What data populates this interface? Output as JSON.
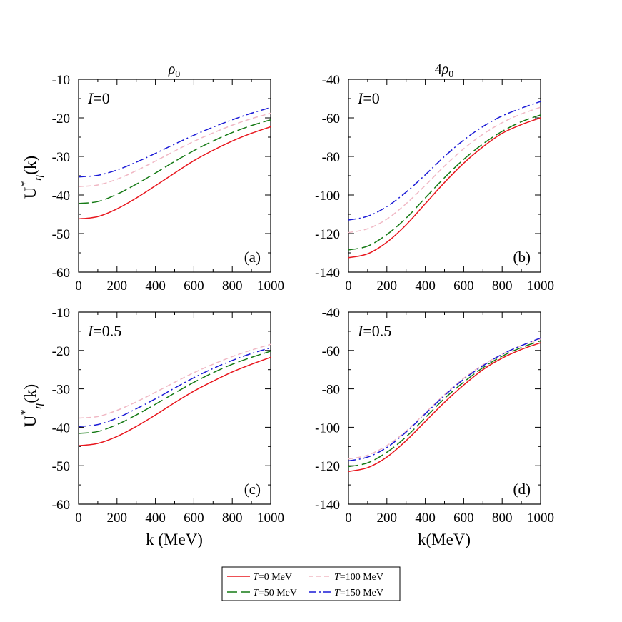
{
  "figure": {
    "column_titles": [
      "ρ0",
      "4ρ0"
    ],
    "ylabel": "U*η(k)",
    "xlabels": [
      "k (MeV)",
      "k(MeV)"
    ]
  },
  "legend": {
    "entries": [
      {
        "label": "T=0 MeV",
        "color": "#e8161d",
        "dash": "solid"
      },
      {
        "label": "T=100 MeV",
        "color": "#f0b8c4",
        "dash": "short-dash"
      },
      {
        "label": "T=50 MeV",
        "color": "#157a15",
        "dash": "long-dash"
      },
      {
        "label": "T=150 MeV",
        "color": "#1a1ad6",
        "dash": "dash-dot"
      }
    ]
  },
  "chart_data": [
    {
      "type": "line",
      "panel_label": "(a)",
      "isospin_label": "I=0",
      "column_title": "ρ0",
      "xlim": [
        0,
        1000
      ],
      "ylim": [
        -60,
        -10
      ],
      "xticks": [
        0,
        200,
        400,
        600,
        800,
        1000
      ],
      "yticks": [
        -60,
        -50,
        -40,
        -30,
        -20,
        -10
      ],
      "x": [
        0,
        100,
        200,
        300,
        400,
        500,
        600,
        700,
        800,
        900,
        1000
      ],
      "series": [
        {
          "name": "T=0 MeV",
          "values": [
            -46.2,
            -45.6,
            -43.6,
            -40.8,
            -37.6,
            -34.3,
            -31.1,
            -28.4,
            -26.0,
            -24.0,
            -22.3
          ]
        },
        {
          "name": "T=50 MeV",
          "values": [
            -42.2,
            -41.7,
            -39.8,
            -37.2,
            -34.3,
            -31.3,
            -28.5,
            -26.0,
            -23.8,
            -22.0,
            -20.5
          ]
        },
        {
          "name": "T=100 MeV",
          "values": [
            -37.8,
            -37.4,
            -35.9,
            -33.7,
            -31.2,
            -28.6,
            -26.1,
            -23.9,
            -21.9,
            -20.2,
            -18.8
          ]
        },
        {
          "name": "T=150 MeV",
          "values": [
            -35.3,
            -34.9,
            -33.5,
            -31.5,
            -29.2,
            -26.8,
            -24.5,
            -22.4,
            -20.5,
            -18.8,
            -17.3
          ]
        }
      ]
    },
    {
      "type": "line",
      "panel_label": "(b)",
      "isospin_label": "I=0",
      "column_title": "4ρ0",
      "xlim": [
        0,
        1000
      ],
      "ylim": [
        -140,
        -40
      ],
      "xticks": [
        0,
        200,
        400,
        600,
        800,
        1000
      ],
      "yticks": [
        -140,
        -120,
        -100,
        -80,
        -60,
        -40
      ],
      "x": [
        0,
        100,
        200,
        300,
        400,
        500,
        600,
        700,
        800,
        900,
        1000
      ],
      "series": [
        {
          "name": "T=0 MeV",
          "values": [
            -132.5,
            -130.5,
            -124.5,
            -115.5,
            -104.5,
            -93.5,
            -83.5,
            -75.0,
            -68.0,
            -63.5,
            -60.0
          ]
        },
        {
          "name": "T=50 MeV",
          "values": [
            -128.5,
            -126.5,
            -120.5,
            -112.0,
            -101.5,
            -91.0,
            -81.5,
            -73.5,
            -67.0,
            -62.0,
            -58.5
          ]
        },
        {
          "name": "T=100 MeV",
          "values": [
            -119.5,
            -117.5,
            -112.5,
            -104.5,
            -95.0,
            -85.0,
            -76.0,
            -68.5,
            -62.5,
            -58.0,
            -54.5
          ]
        },
        {
          "name": "T=150 MeV",
          "values": [
            -113.0,
            -111.0,
            -106.0,
            -98.5,
            -89.5,
            -80.0,
            -71.5,
            -64.5,
            -59.0,
            -55.0,
            -51.5
          ]
        }
      ]
    },
    {
      "type": "line",
      "panel_label": "(c)",
      "isospin_label": "I=0.5",
      "column_title": "",
      "xlim": [
        0,
        1000
      ],
      "ylim": [
        -60,
        -10
      ],
      "xticks": [
        0,
        200,
        400,
        600,
        800,
        1000
      ],
      "yticks": [
        -60,
        -50,
        -40,
        -30,
        -20,
        -10
      ],
      "x": [
        0,
        100,
        200,
        300,
        400,
        500,
        600,
        700,
        800,
        900,
        1000
      ],
      "series": [
        {
          "name": "T=0 MeV",
          "values": [
            -44.8,
            -44.2,
            -42.4,
            -39.8,
            -36.8,
            -33.6,
            -30.6,
            -28.0,
            -25.6,
            -23.6,
            -21.8
          ]
        },
        {
          "name": "T=50 MeV",
          "values": [
            -41.6,
            -41.1,
            -39.3,
            -36.8,
            -34.0,
            -31.1,
            -28.3,
            -25.8,
            -23.6,
            -21.8,
            -20.2
          ]
        },
        {
          "name": "T=100 MeV",
          "values": [
            -37.6,
            -37.2,
            -35.6,
            -33.4,
            -30.9,
            -28.3,
            -25.8,
            -23.6,
            -21.6,
            -19.9,
            -18.4
          ]
        },
        {
          "name": "T=150 MeV",
          "values": [
            -39.8,
            -39.3,
            -37.6,
            -35.2,
            -32.6,
            -29.8,
            -27.1,
            -24.7,
            -22.6,
            -20.8,
            -19.3
          ]
        }
      ]
    },
    {
      "type": "line",
      "panel_label": "(d)",
      "isospin_label": "I=0.5",
      "column_title": "",
      "xlim": [
        0,
        1000
      ],
      "ylim": [
        -140,
        -40
      ],
      "xticks": [
        0,
        200,
        400,
        600,
        800,
        1000
      ],
      "yticks": [
        -140,
        -120,
        -100,
        -80,
        -60,
        -40
      ],
      "x": [
        0,
        100,
        200,
        300,
        400,
        500,
        600,
        700,
        800,
        900,
        1000
      ],
      "series": [
        {
          "name": "T=0 MeV",
          "values": [
            -123.0,
            -121.0,
            -115.5,
            -107.0,
            -97.0,
            -87.0,
            -78.0,
            -70.0,
            -64.0,
            -59.5,
            -56.0
          ]
        },
        {
          "name": "T=50 MeV",
          "values": [
            -120.5,
            -118.5,
            -113.0,
            -105.0,
            -95.0,
            -85.0,
            -76.5,
            -69.0,
            -63.0,
            -58.5,
            -55.0
          ]
        },
        {
          "name": "T=100 MeV",
          "values": [
            -116.5,
            -114.5,
            -109.5,
            -102.0,
            -92.5,
            -83.0,
            -74.5,
            -67.5,
            -62.0,
            -57.5,
            -54.0
          ]
        },
        {
          "name": "T=150 MeV",
          "values": [
            -117.5,
            -115.5,
            -110.5,
            -102.5,
            -93.0,
            -83.5,
            -75.0,
            -68.0,
            -62.0,
            -57.5,
            -53.5
          ]
        }
      ]
    }
  ]
}
